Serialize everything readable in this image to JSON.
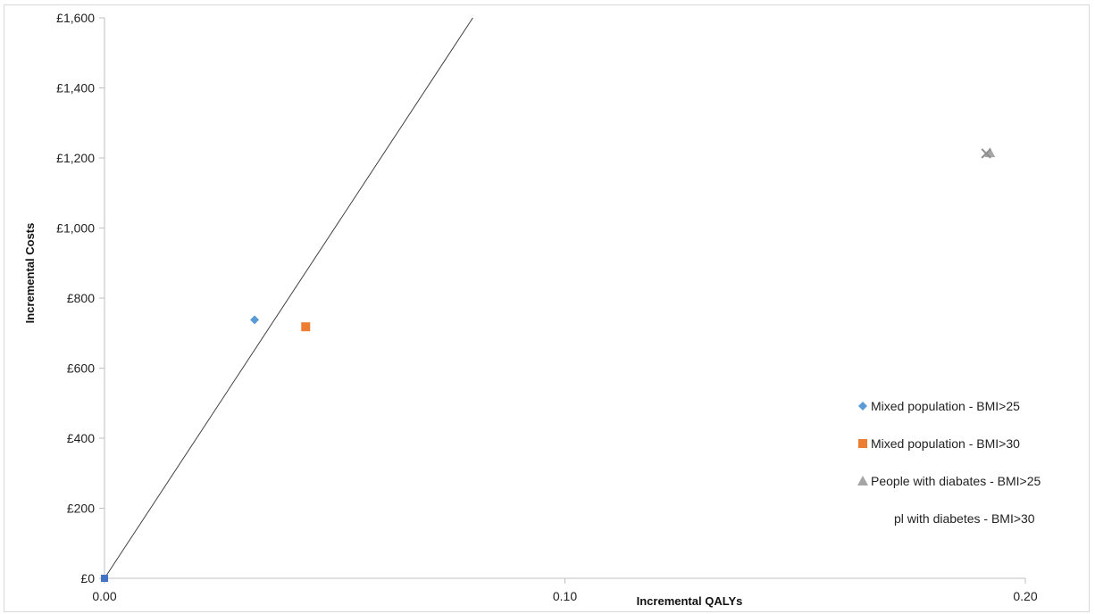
{
  "chart_data": {
    "type": "scatter",
    "xlabel": "Incremental QALYs",
    "ylabel": "Incremental Costs",
    "xlim": [
      0,
      0.2
    ],
    "ylim": [
      0,
      1600
    ],
    "x_ticks": [
      0,
      0.1,
      0.2
    ],
    "x_tick_labels": [
      "0.00",
      "0.10",
      "0.20"
    ],
    "y_ticks": [
      0,
      200,
      400,
      600,
      800,
      1000,
      1200,
      1400,
      1600
    ],
    "y_tick_labels": [
      "£0",
      "£200",
      "£400",
      "£600",
      "£800",
      "£1,000",
      "£1,200",
      "£1,400",
      "£1,600"
    ],
    "grid": false,
    "legend_position": "right",
    "threshold_line": {
      "points": [
        [
          0,
          0
        ],
        [
          0.08,
          1600
        ]
      ]
    },
    "series": [
      {
        "name": "Mixed population - BMI>25",
        "marker": "diamond",
        "color": "#5b9bd5",
        "points": [
          [
            0.0326,
            738
          ]
        ]
      },
      {
        "name": "Mixed population - BMI>30",
        "marker": "square",
        "color": "#ed7d31",
        "points": [
          [
            0.0437,
            718
          ]
        ]
      },
      {
        "name": "People with diabates - BMI>25",
        "marker": "triangle",
        "color": "#a5a5a5",
        "points": [
          [
            0.1923,
            1215
          ]
        ]
      },
      {
        "name": "pl   with diabetes - BMI>30",
        "marker": "x",
        "color": "#8c8c8c",
        "points": [
          [
            0.1915,
            1213
          ]
        ]
      }
    ],
    "origin_marker": {
      "color": "#4472c4",
      "points": [
        [
          0,
          0
        ]
      ]
    }
  }
}
